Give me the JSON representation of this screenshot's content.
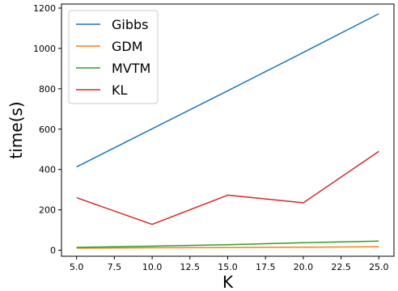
{
  "chart_data": {
    "type": "line",
    "title": "",
    "xlabel": "K",
    "ylabel": "time(s)",
    "x": [
      5,
      10,
      15,
      20,
      25
    ],
    "xlim": [
      4.0,
      26.0
    ],
    "ylim": [
      -30,
      1220
    ],
    "xticks": [
      5.0,
      7.5,
      10.0,
      12.5,
      15.0,
      17.5,
      20.0,
      22.5,
      25.0
    ],
    "xtick_labels": [
      "5.0",
      "7.5",
      "10.0",
      "12.5",
      "15.0",
      "17.5",
      "20.0",
      "22.5",
      "25.0"
    ],
    "yticks": [
      0,
      200,
      400,
      600,
      800,
      1000,
      1200
    ],
    "ytick_labels": [
      "0",
      "200",
      "400",
      "600",
      "800",
      "1000",
      "1200"
    ],
    "grid": false,
    "legend_position": "top-left",
    "series": [
      {
        "name": "Gibbs",
        "color": "#1f77b4",
        "values": [
          413,
          602,
          790,
          980,
          1172
        ]
      },
      {
        "name": "GDM",
        "color": "#ff7f0e",
        "values": [
          10,
          12,
          13,
          15,
          17
        ]
      },
      {
        "name": "MVTM",
        "color": "#2ca02c",
        "values": [
          14,
          20,
          27,
          37,
          45
        ]
      },
      {
        "name": "KL",
        "color": "#d62728",
        "values": [
          260,
          128,
          273,
          235,
          490
        ]
      }
    ]
  }
}
